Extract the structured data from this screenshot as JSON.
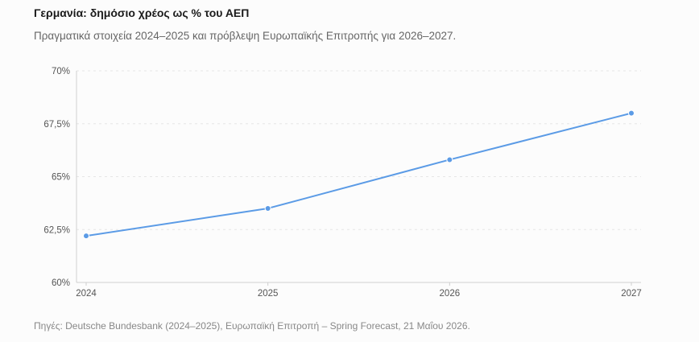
{
  "header": {
    "title": "Γερμανία: δημόσιο χρέος ως % του ΑΕΠ",
    "subtitle": "Πραγματικά στοιχεία 2024–2025 και πρόβλεψη Ευρωπαϊκής Επιτροπής για 2026–2027."
  },
  "footer": {
    "source": "Πηγές: Deutsche Bundesbank (2024–2025), Ευρωπαϊκή Επιτροπή – Spring Forecast, 21 Μαΐου 2026."
  },
  "colors": {
    "line": "#5b9be6",
    "grid": "#e6e6e6",
    "tick": "#555555"
  },
  "chart_data": {
    "type": "line",
    "x": [
      "2024",
      "2025",
      "2026",
      "2027"
    ],
    "series": [
      {
        "values": [
          62.2,
          63.5,
          65.8,
          68.0
        ]
      }
    ],
    "y_ticks": [
      {
        "value": 60,
        "label": "60%"
      },
      {
        "value": 62.5,
        "label": "62,5%"
      },
      {
        "value": 65,
        "label": "65%"
      },
      {
        "value": 67.5,
        "label": "67,5%"
      },
      {
        "value": 70,
        "label": "70%"
      }
    ],
    "ylim": [
      60,
      70
    ],
    "grid": true,
    "legend": "none"
  }
}
